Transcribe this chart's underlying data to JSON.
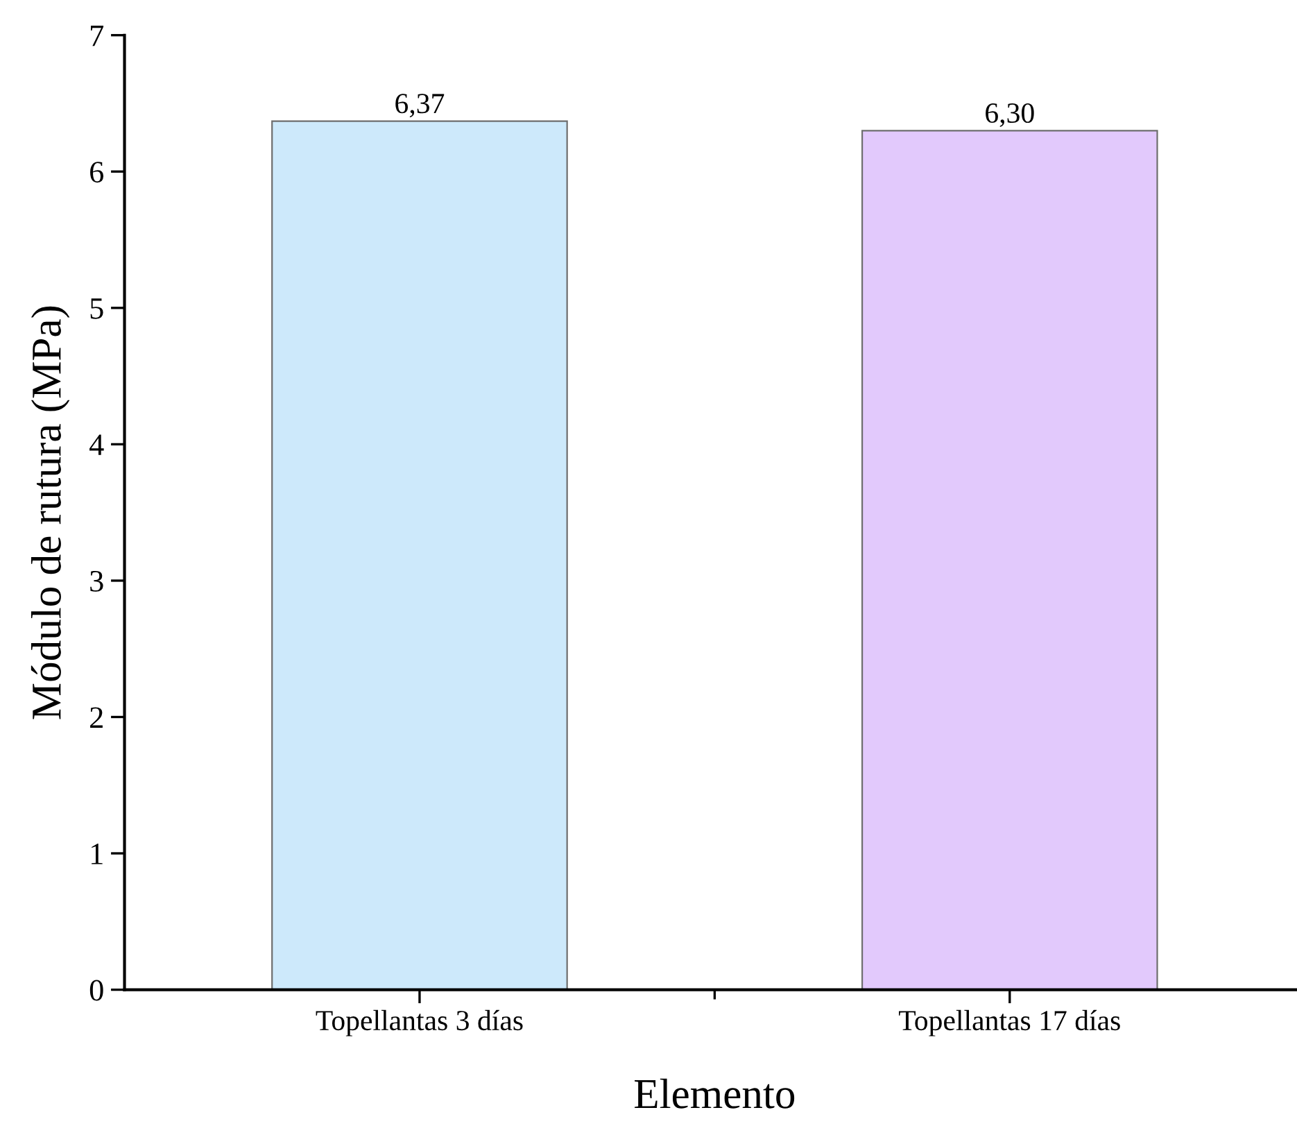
{
  "chart_data": {
    "type": "bar",
    "xlabel": "Elemento",
    "ylabel": "Módulo de rutura (MPa)",
    "categories": [
      "Topellantas 3 días",
      "Topellantas 17 días"
    ],
    "values": [
      6.37,
      6.3
    ],
    "colors": [
      "#cde9fb",
      "#e2c9fc"
    ],
    "value_labels": [
      "6,37",
      "6,30"
    ],
    "ylim": [
      0,
      7
    ],
    "yticks": [
      0,
      1,
      2,
      3,
      4,
      5,
      6,
      7
    ],
    "grid": false,
    "legend": false
  }
}
